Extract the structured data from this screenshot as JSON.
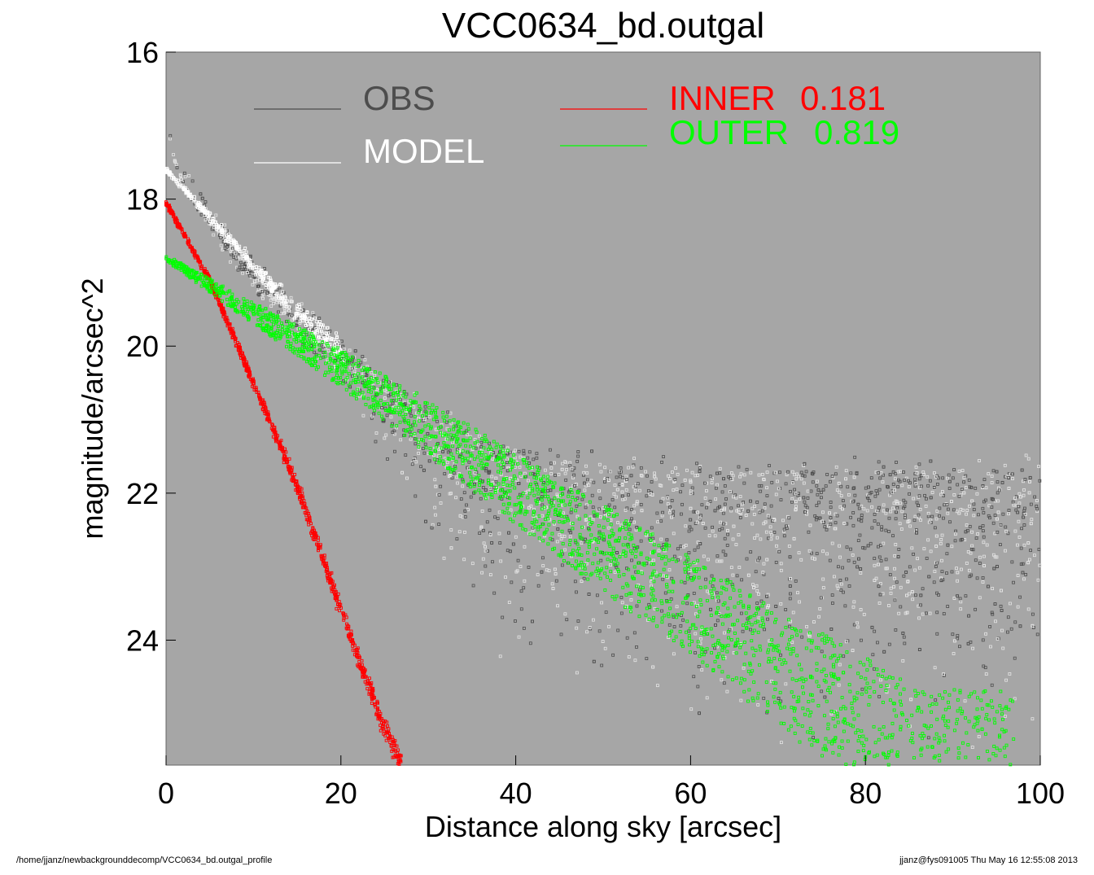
{
  "chart_data": {
    "type": "scatter",
    "title": "VCC0634_bd.outgal",
    "xlabel": "Distance along sky [arcsec]",
    "ylabel": "magnitude/arcsec^2",
    "xlim": [
      0,
      100
    ],
    "ylim": [
      25.7,
      16
    ],
    "y_inverted": true,
    "grid": false,
    "legend_placement": "top-left and top-center inside plot",
    "x_ticks": [
      "0",
      "20",
      "40",
      "60",
      "80",
      "100"
    ],
    "x_tick_values": [
      0,
      20,
      40,
      60,
      80,
      100
    ],
    "y_ticks": [
      "16",
      "18",
      "20",
      "22",
      "24"
    ],
    "y_tick_values": [
      16,
      18,
      20,
      22,
      24
    ],
    "background_color": "#a6a6a6",
    "series": [
      {
        "name": "OBS",
        "color": "#4d4d4d",
        "description_points": [
          [
            0,
            17.1
          ],
          [
            2,
            17.8
          ],
          [
            5,
            18.3
          ],
          [
            10,
            19.0
          ],
          [
            15,
            19.6
          ],
          [
            20,
            20.1
          ],
          [
            25,
            20.5
          ],
          [
            30,
            20.9
          ],
          [
            35,
            21.2
          ],
          [
            40,
            21.4
          ],
          [
            50,
            21.6
          ],
          [
            60,
            21.7
          ],
          [
            70,
            21.7
          ],
          [
            80,
            21.7
          ],
          [
            90,
            21.7
          ],
          [
            100,
            21.7
          ]
        ],
        "scatter_spread": [
          [
            20,
            0.6
          ],
          [
            40,
            3.5
          ],
          [
            60,
            4.3
          ],
          [
            80,
            4.3
          ],
          [
            100,
            4.3
          ]
        ]
      },
      {
        "name": "MODEL",
        "color": "#ffffff",
        "points": [
          [
            0,
            17.6
          ],
          [
            2,
            17.85
          ],
          [
            5,
            18.25
          ],
          [
            8,
            18.65
          ],
          [
            10,
            18.9
          ],
          [
            13,
            19.3
          ],
          [
            15,
            19.55
          ],
          [
            18,
            19.85
          ],
          [
            20,
            20.05
          ]
        ]
      },
      {
        "name": "INNER",
        "label_value": "0.181",
        "color": "#ff0000",
        "points": [
          [
            0,
            18.05
          ],
          [
            5,
            19.1
          ],
          [
            10,
            20.5
          ],
          [
            15,
            21.9
          ],
          [
            20,
            23.6
          ],
          [
            25,
            25.2
          ],
          [
            27,
            25.7
          ]
        ]
      },
      {
        "name": "OUTER",
        "label_value": "0.819",
        "color": "#00ff00",
        "points": [
          [
            0,
            18.8
          ],
          [
            10,
            19.55
          ],
          [
            20,
            20.3
          ],
          [
            30,
            21.1
          ],
          [
            40,
            21.95
          ],
          [
            50,
            22.75
          ],
          [
            60,
            23.55
          ],
          [
            70,
            24.35
          ],
          [
            80,
            25.15
          ],
          [
            87,
            25.7
          ]
        ]
      }
    ]
  },
  "legend": {
    "obs": "OBS",
    "model": "MODEL",
    "inner_name": "INNER",
    "inner_value": "0.181",
    "outer_name": "OUTER",
    "outer_value": "0.819"
  },
  "footer": {
    "path": "/home/jjanz/newbackgrounddecomp/VCC0634_bd.outgal_profile",
    "stamp": "jjanz@fys091005  Thu May 16 12:55:08 2013"
  }
}
